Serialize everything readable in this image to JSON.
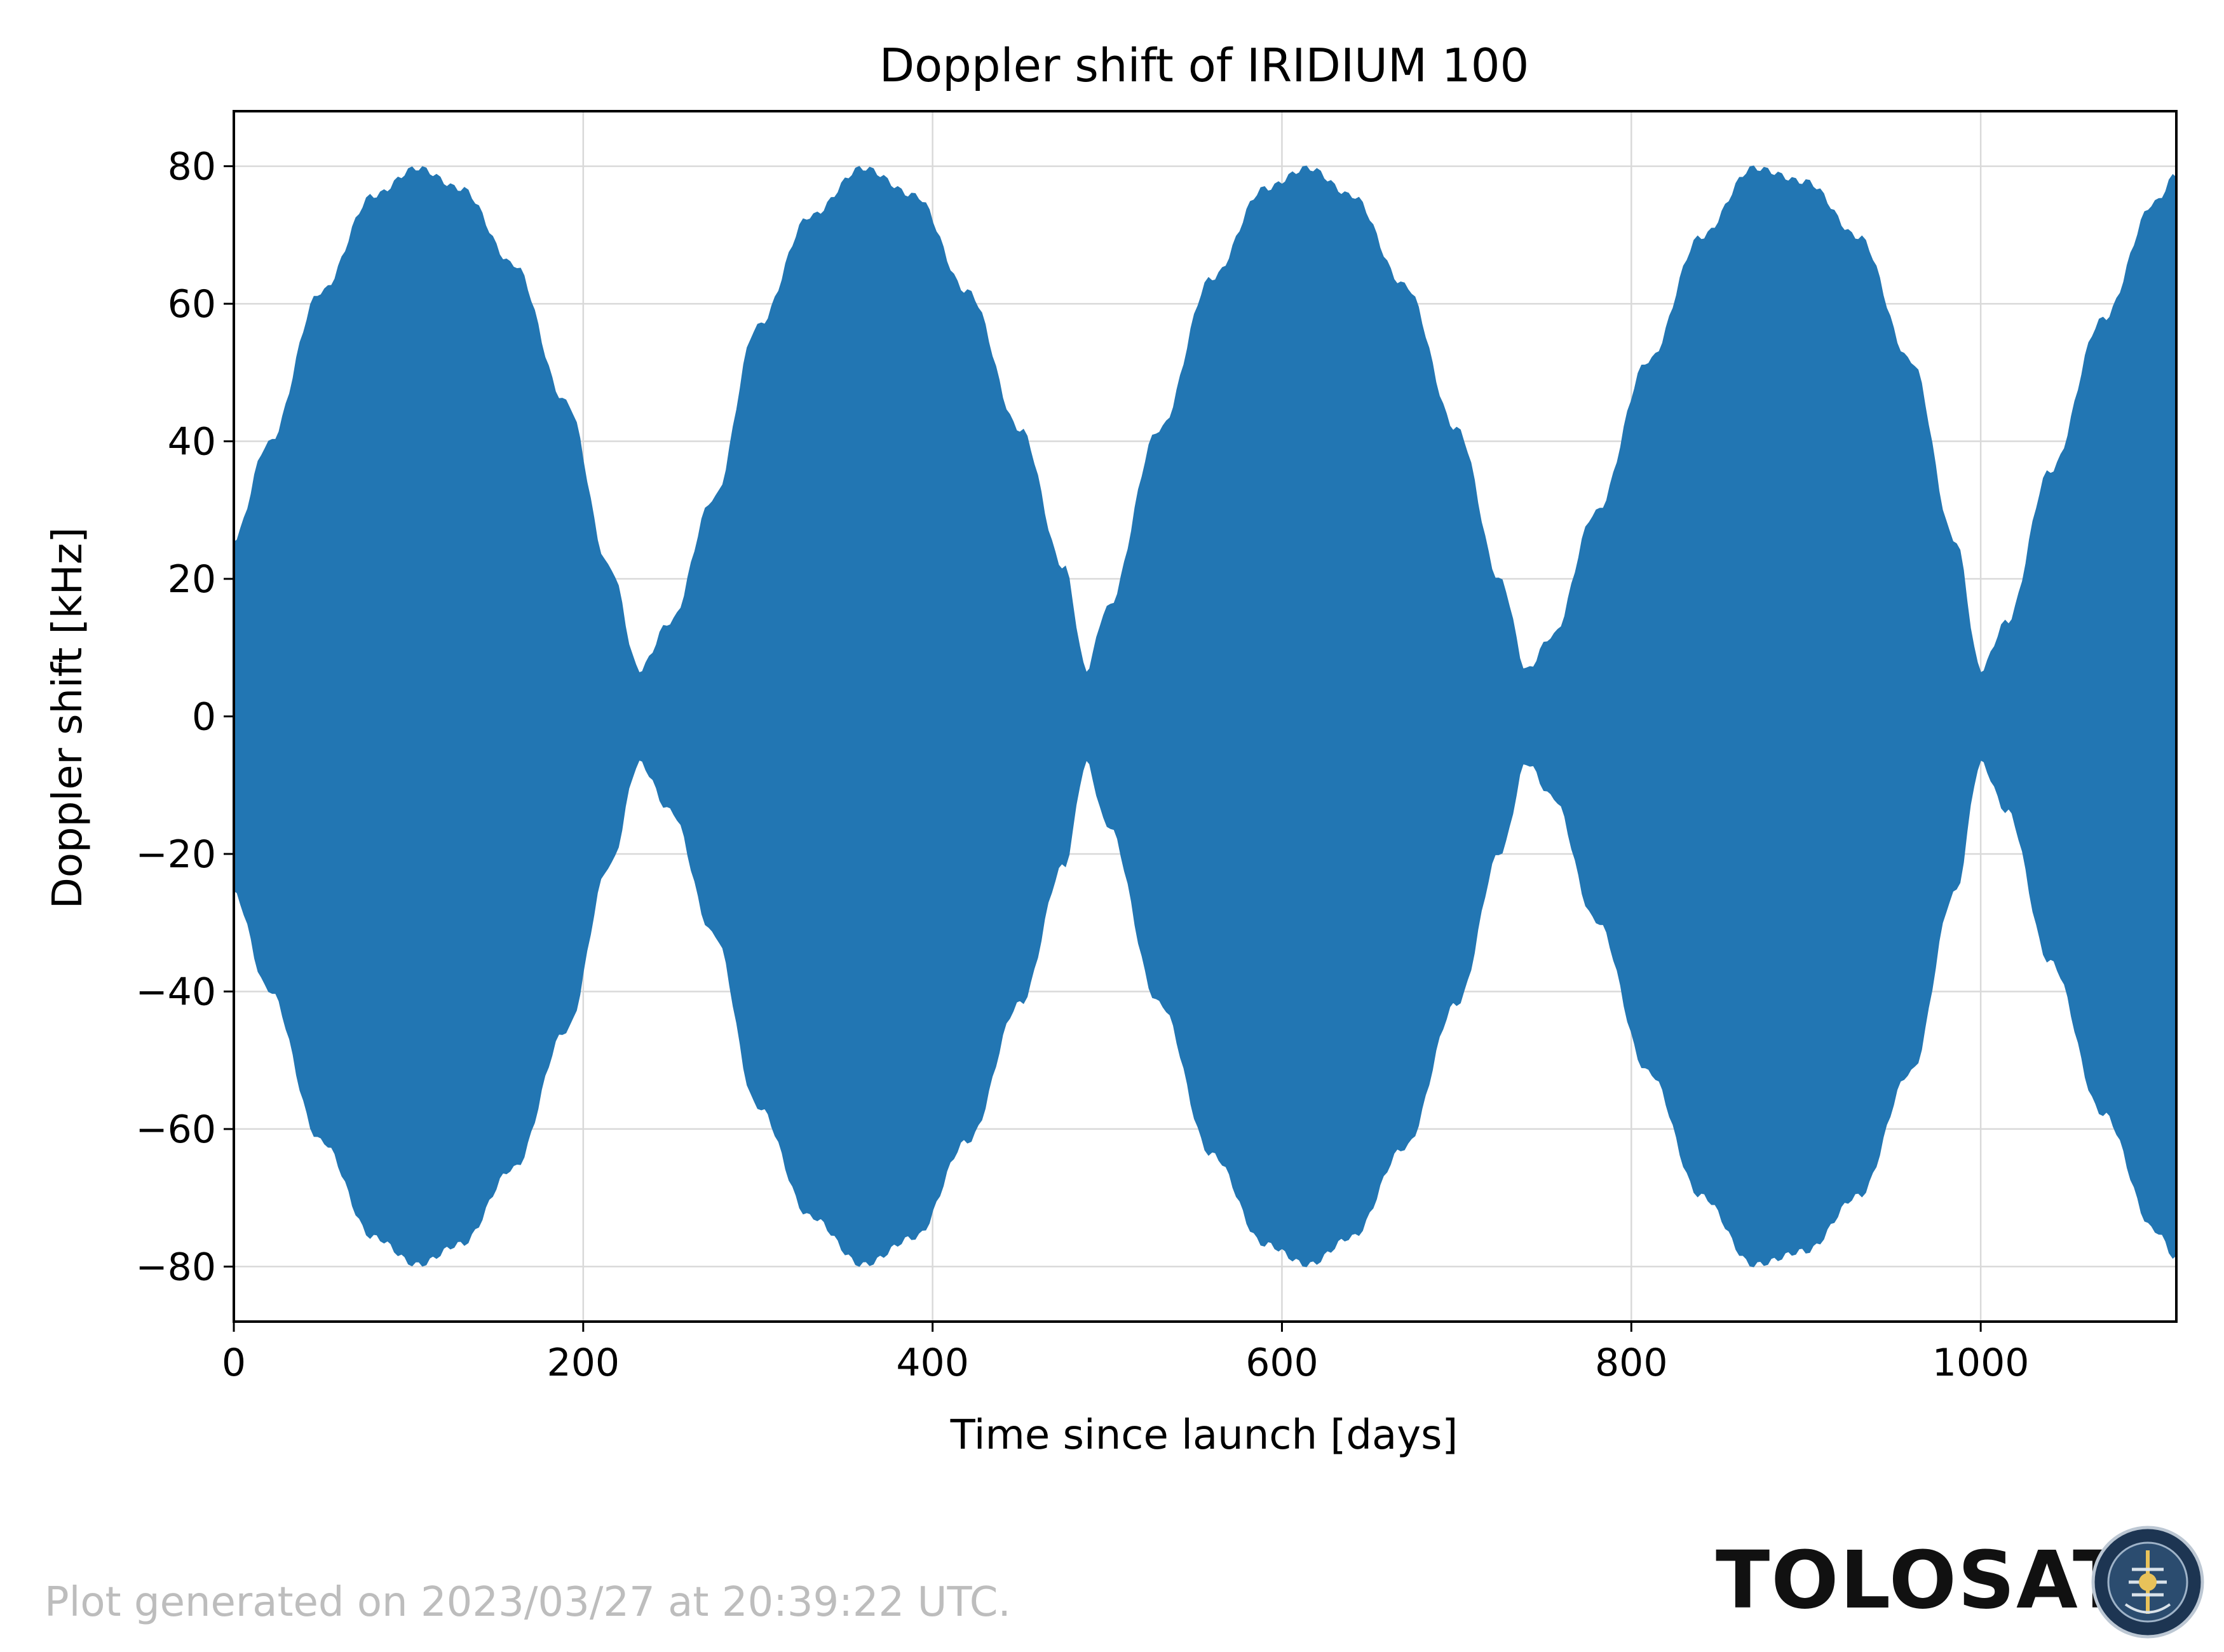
{
  "chart_data": {
    "type": "area",
    "title": "Doppler shift of IRIDIUM 100",
    "xlabel": "Time since launch [days]",
    "ylabel": "Doppler shift [kHz]",
    "xlim": [
      0,
      1112
    ],
    "ylim": [
      -88,
      88
    ],
    "xticks": [
      0,
      200,
      400,
      600,
      800,
      1000
    ],
    "xtick_labels": [
      "0",
      "200",
      "400",
      "600",
      "800",
      "1000"
    ],
    "yticks": [
      -80,
      -60,
      -40,
      -20,
      0,
      20,
      40,
      60,
      80
    ],
    "ytick_labels": [
      "−80",
      "−60",
      "−40",
      "−20",
      "0",
      "20",
      "40",
      "60",
      "80"
    ],
    "grid": true,
    "series": [
      {
        "color": "#2276b3",
        "envelope_x": [
          0,
          20,
          50,
          80,
          105,
          130,
          160,
          190,
          215,
          232,
          250,
          275,
          300,
          330,
          360,
          390,
          420,
          450,
          475,
          488,
          500,
          530,
          560,
          590,
          615,
          640,
          670,
          700,
          725,
          740,
          755,
          780,
          810,
          840,
          870,
          900,
          930,
          960,
          985,
          1000,
          1015,
          1040,
          1070,
          1100,
          1112
        ],
        "envelope_upper": [
          26,
          40,
          62,
          76,
          80,
          77,
          66,
          46,
          22,
          7,
          14,
          32,
          57,
          73,
          80,
          76,
          62,
          42,
          22,
          7,
          16,
          42,
          64,
          77,
          80,
          76,
          63,
          42,
          20,
          7,
          12,
          30,
          52,
          70,
          80,
          78,
          70,
          52,
          26,
          7,
          14,
          36,
          58,
          75,
          79
        ],
        "envelope_lower": [
          -26,
          -40,
          -62,
          -76,
          -80,
          -77,
          -66,
          -46,
          -22,
          -7,
          -14,
          -32,
          -57,
          -73,
          -80,
          -76,
          -62,
          -42,
          -22,
          -7,
          -16,
          -42,
          -64,
          -77,
          -80,
          -76,
          -63,
          -42,
          -20,
          -7,
          -12,
          -30,
          -52,
          -70,
          -80,
          -78,
          -70,
          -52,
          -26,
          -7,
          -14,
          -36,
          -58,
          -75,
          -79
        ]
      }
    ]
  },
  "footer": {
    "generated_text": "Plot generated on 2023/03/27 at 20:39:22 UTC.",
    "brand": "TOLOSAT",
    "logo_text": "ASTRE-CC SUPAERO · TOLOSAT"
  }
}
